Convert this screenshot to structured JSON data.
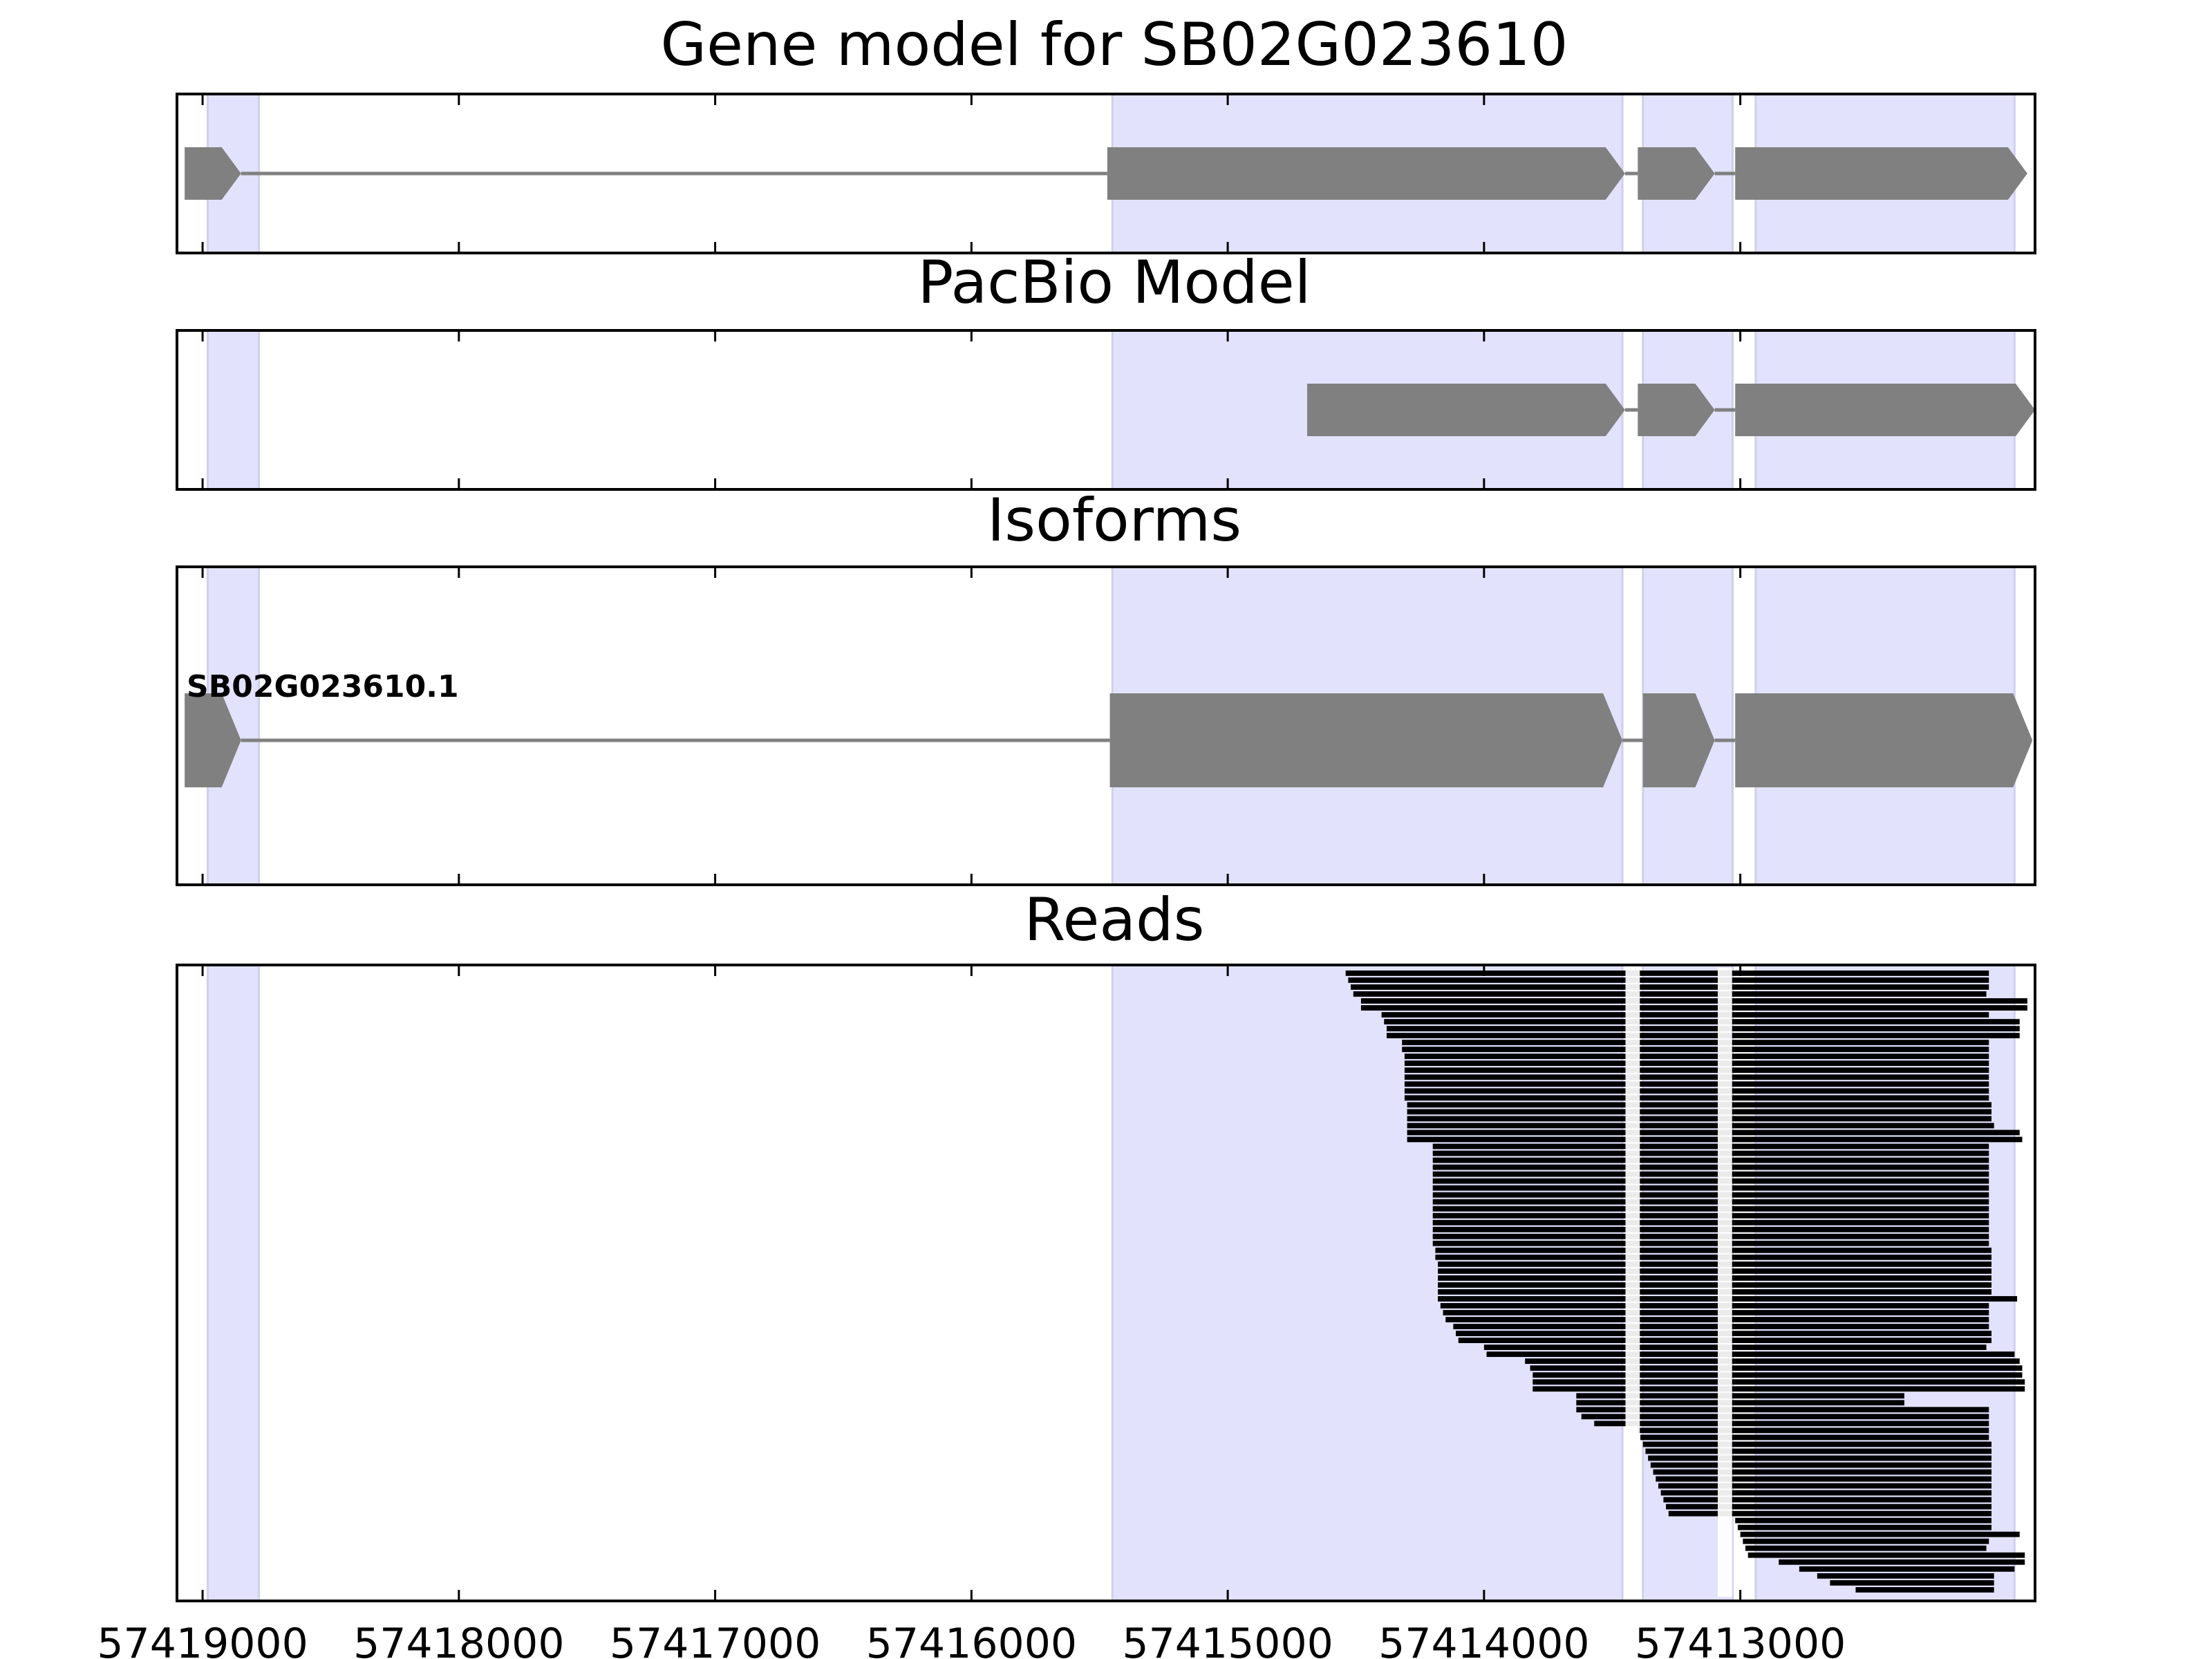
{
  "figure": {
    "colors": {
      "exon_highlight": "#e2e2fd",
      "exon_highlight_edge": "#d0d0ec",
      "feature_fill": "#808080",
      "read_fill": "#000000",
      "axis": "#000000"
    }
  },
  "chart_data": [
    {
      "type": "gene_track",
      "title": "Gene model for SB02G023610",
      "xlim": [
        57419100,
        57411850
      ],
      "strand": "reverse",
      "highlight_exons": [
        [
          57418980,
          57418780
        ],
        [
          57415450,
          57413460
        ],
        [
          57413380,
          57413030
        ],
        [
          57412940,
          57411930
        ]
      ],
      "features": [
        {
          "label": "",
          "exons": [
            [
              57419070,
              57418850
            ],
            [
              57415470,
              57413450
            ],
            [
              57413400,
              57413100
            ],
            [
              57413020,
              57411880
            ]
          ]
        }
      ],
      "xticks": [
        57419000,
        57418000,
        57417000,
        57416000,
        57415000,
        57414000,
        57413000
      ]
    },
    {
      "type": "gene_track",
      "title": "PacBio Model",
      "xlim": [
        57419100,
        57411850
      ],
      "strand": "reverse",
      "highlight_exons": [
        [
          57418980,
          57418780
        ],
        [
          57415450,
          57413460
        ],
        [
          57413380,
          57413030
        ],
        [
          57412940,
          57411930
        ]
      ],
      "features": [
        {
          "label": "",
          "exons": [
            [
              57414690,
              57413450
            ],
            [
              57413400,
              57413100
            ],
            [
              57413020,
              57411850
            ]
          ]
        }
      ],
      "xticks": [
        57419000,
        57418000,
        57417000,
        57416000,
        57415000,
        57414000,
        57413000
      ]
    },
    {
      "type": "gene_track",
      "title": "Isoforms",
      "xlim": [
        57419100,
        57411850
      ],
      "strand": "reverse",
      "highlight_exons": [
        [
          57418980,
          57418780
        ],
        [
          57415450,
          57413460
        ],
        [
          57413380,
          57413030
        ],
        [
          57412940,
          57411930
        ]
      ],
      "features": [
        {
          "label": "SB02G023610.1",
          "exons": [
            [
              57419070,
              57418850
            ],
            [
              57415460,
              57413460
            ],
            [
              57413380,
              57413100
            ],
            [
              57413020,
              57411860
            ]
          ]
        }
      ],
      "xticks": [
        57419000,
        57418000,
        57417000,
        57416000,
        57415000,
        57414000,
        57413000
      ]
    },
    {
      "type": "read_pileup",
      "title": "Reads",
      "xlim": [
        57419100,
        57411850
      ],
      "highlight_exons": [
        [
          57418980,
          57418780
        ],
        [
          57415450,
          57413460
        ],
        [
          57413380,
          57413030
        ],
        [
          57412940,
          57411930
        ]
      ],
      "intron_gaps": [
        [
          57413460,
          57413380
        ],
        [
          57413100,
          57413020
        ]
      ],
      "read_count": 90,
      "reads": [
        [
          57414540,
          57412030
        ],
        [
          57414530,
          57412030
        ],
        [
          57414520,
          57412030
        ],
        [
          57414510,
          57412040
        ],
        [
          57414480,
          57411880
        ],
        [
          57414480,
          57411880
        ],
        [
          57414400,
          57412030
        ],
        [
          57414390,
          57411910
        ],
        [
          57414380,
          57411910
        ],
        [
          57414380,
          57411910
        ],
        [
          57414320,
          57412030
        ],
        [
          57414320,
          57412030
        ],
        [
          57414310,
          57412030
        ],
        [
          57414310,
          57412030
        ],
        [
          57414310,
          57412030
        ],
        [
          57414310,
          57412030
        ],
        [
          57414310,
          57412030
        ],
        [
          57414310,
          57412030
        ],
        [
          57414310,
          57412030
        ],
        [
          57414300,
          57412020
        ],
        [
          57414300,
          57412020
        ],
        [
          57414300,
          57412020
        ],
        [
          57414300,
          57412010
        ],
        [
          57414300,
          57411910
        ],
        [
          57414300,
          57411900
        ],
        [
          57414200,
          57412030
        ],
        [
          57414200,
          57412030
        ],
        [
          57414200,
          57412030
        ],
        [
          57414200,
          57412030
        ],
        [
          57414200,
          57412030
        ],
        [
          57414200,
          57412030
        ],
        [
          57414200,
          57412030
        ],
        [
          57414200,
          57412030
        ],
        [
          57414200,
          57412030
        ],
        [
          57414200,
          57412030
        ],
        [
          57414200,
          57412030
        ],
        [
          57414200,
          57412030
        ],
        [
          57414200,
          57412030
        ],
        [
          57414200,
          57412030
        ],
        [
          57414200,
          57412030
        ],
        [
          57414190,
          57412020
        ],
        [
          57414190,
          57412020
        ],
        [
          57414180,
          57412020
        ],
        [
          57414180,
          57412020
        ],
        [
          57414180,
          57412020
        ],
        [
          57414180,
          57412020
        ],
        [
          57414180,
          57412020
        ],
        [
          57414180,
          57411920
        ],
        [
          57414170,
          57412030
        ],
        [
          57414160,
          57412030
        ],
        [
          57414150,
          57412030
        ],
        [
          57414120,
          57412030
        ],
        [
          57414110,
          57412020
        ],
        [
          57414100,
          57412020
        ],
        [
          57414000,
          57412040
        ],
        [
          57413990,
          57411930
        ],
        [
          57413840,
          57411910
        ],
        [
          57413820,
          57411900
        ],
        [
          57413810,
          57411900
        ],
        [
          57413810,
          57411890
        ],
        [
          57413810,
          57411890
        ],
        [
          57413640,
          57412360
        ],
        [
          57413640,
          57412360
        ],
        [
          57413640,
          57412030
        ],
        [
          57413620,
          57412030
        ],
        [
          57413570,
          57412030
        ],
        [
          57413400,
          57412030
        ],
        [
          57413390,
          57412030
        ],
        [
          57413380,
          57412020
        ],
        [
          57413370,
          57412020
        ],
        [
          57413360,
          57412020
        ],
        [
          57413350,
          57412020
        ],
        [
          57413340,
          57412020
        ],
        [
          57413330,
          57412020
        ],
        [
          57413320,
          57412020
        ],
        [
          57413310,
          57412020
        ],
        [
          57413300,
          57412020
        ],
        [
          57413290,
          57412020
        ],
        [
          57413280,
          57412020
        ],
        [
          57413020,
          57412020
        ],
        [
          57413010,
          57412020
        ],
        [
          57413000,
          57411910
        ],
        [
          57412990,
          57412030
        ],
        [
          57412980,
          57412040
        ],
        [
          57412970,
          57411890
        ],
        [
          57412850,
          57411890
        ],
        [
          57412770,
          57411930
        ],
        [
          57412700,
          57412010
        ],
        [
          57412650,
          57412010
        ],
        [
          57412550,
          57412010
        ]
      ],
      "xticks": [
        57419000,
        57418000,
        57417000,
        57416000,
        57415000,
        57414000,
        57413000
      ],
      "xtick_labels": [
        "57419000",
        "57418000",
        "57417000",
        "57416000",
        "57415000",
        "57414000",
        "57413000"
      ]
    }
  ]
}
